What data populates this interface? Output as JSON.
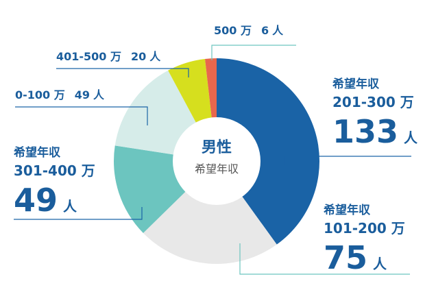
{
  "chart_data": {
    "type": "donut",
    "title": "男性",
    "subtitle": "希望年収",
    "series_label": "希望年収",
    "unit": "人",
    "categories": [
      "201-300 万",
      "101-200 万",
      "301-400 万",
      "0-100 万",
      "401-500 万",
      "500 万"
    ],
    "values": [
      133,
      75,
      49,
      49,
      20,
      6
    ],
    "colors": [
      "#1a63a6",
      "#e8e8e8",
      "#6cc5bf",
      "#d6ece9",
      "#d6df1e",
      "#e8674d"
    ]
  }
}
